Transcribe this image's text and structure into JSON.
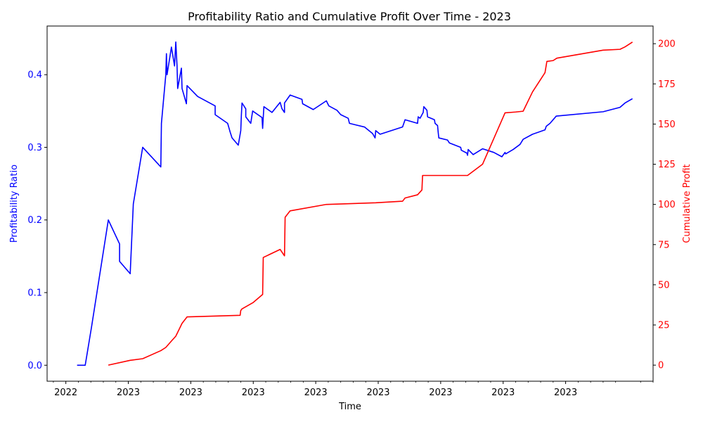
{
  "chart_data": {
    "type": "line",
    "title": "Profitability Ratio and Cumulative Profit Over Time - 2023",
    "xlabel": "Time",
    "x_tick_labels": [
      "2022",
      "2023",
      "2023",
      "2023",
      "2023",
      "2023",
      "2023",
      "2023",
      "2023"
    ],
    "axes": {
      "left": {
        "label": "Profitability Ratio",
        "color": "#0000ff",
        "ylim": [
          -0.022,
          0.467
        ],
        "ticks": [
          0.0,
          0.1,
          0.2,
          0.3,
          0.4
        ],
        "tick_labels": [
          "0.0",
          "0.1",
          "0.2",
          "0.3",
          "0.4"
        ]
      },
      "right": {
        "label": "Cumulative Profit",
        "color": "#ff0000",
        "ylim": [
          -10,
          211
        ],
        "ticks": [
          0,
          25,
          50,
          75,
          100,
          125,
          150,
          175,
          200
        ],
        "tick_labels": [
          "0",
          "25",
          "50",
          "75",
          "100",
          "125",
          "150",
          "175",
          "200"
        ]
      }
    },
    "xlim": [
      -0.3,
      9.4
    ],
    "x_ticks": [
      0,
      1,
      2,
      3,
      4,
      5,
      6,
      7,
      8
    ],
    "grid": false,
    "series": [
      {
        "name": "Profitability Ratio",
        "axis": "left",
        "color": "#0000ff",
        "points": [
          [
            0.18,
            0.0
          ],
          [
            0.31,
            0.0
          ],
          [
            0.41,
            0.052
          ],
          [
            0.68,
            0.2
          ],
          [
            0.86,
            0.167
          ],
          [
            0.86,
            0.143
          ],
          [
            1.03,
            0.126
          ],
          [
            1.08,
            0.222
          ],
          [
            1.23,
            0.3
          ],
          [
            1.52,
            0.273
          ],
          [
            1.53,
            0.333
          ],
          [
            1.6,
            0.4
          ],
          [
            1.61,
            0.429
          ],
          [
            1.62,
            0.4
          ],
          [
            1.69,
            0.438
          ],
          [
            1.74,
            0.412
          ],
          [
            1.76,
            0.445
          ],
          [
            1.78,
            0.412
          ],
          [
            1.79,
            0.381
          ],
          [
            1.85,
            0.409
          ],
          [
            1.86,
            0.381
          ],
          [
            1.93,
            0.36
          ],
          [
            1.94,
            0.385
          ],
          [
            2.11,
            0.37
          ],
          [
            2.39,
            0.357
          ],
          [
            2.39,
            0.345
          ],
          [
            2.59,
            0.333
          ],
          [
            2.63,
            0.321
          ],
          [
            2.66,
            0.313
          ],
          [
            2.76,
            0.303
          ],
          [
            2.8,
            0.323
          ],
          [
            2.81,
            0.345
          ],
          [
            2.82,
            0.361
          ],
          [
            2.88,
            0.353
          ],
          [
            2.88,
            0.342
          ],
          [
            2.96,
            0.333
          ],
          [
            2.99,
            0.35
          ],
          [
            3.14,
            0.341
          ],
          [
            3.15,
            0.326
          ],
          [
            3.17,
            0.356
          ],
          [
            3.3,
            0.348
          ],
          [
            3.43,
            0.362
          ],
          [
            3.46,
            0.353
          ],
          [
            3.5,
            0.348
          ],
          [
            3.5,
            0.361
          ],
          [
            3.59,
            0.372
          ],
          [
            3.78,
            0.366
          ],
          [
            3.79,
            0.36
          ],
          [
            3.96,
            0.352
          ],
          [
            4.17,
            0.364
          ],
          [
            4.21,
            0.357
          ],
          [
            4.34,
            0.351
          ],
          [
            4.4,
            0.345
          ],
          [
            4.52,
            0.34
          ],
          [
            4.54,
            0.333
          ],
          [
            4.78,
            0.328
          ],
          [
            4.91,
            0.319
          ],
          [
            4.95,
            0.313
          ],
          [
            4.96,
            0.323
          ],
          [
            5.03,
            0.318
          ],
          [
            5.39,
            0.328
          ],
          [
            5.43,
            0.338
          ],
          [
            5.63,
            0.333
          ],
          [
            5.64,
            0.342
          ],
          [
            5.67,
            0.34
          ],
          [
            5.72,
            0.348
          ],
          [
            5.73,
            0.356
          ],
          [
            5.78,
            0.351
          ],
          [
            5.79,
            0.342
          ],
          [
            5.9,
            0.338
          ],
          [
            5.91,
            0.333
          ],
          [
            5.95,
            0.33
          ],
          [
            5.96,
            0.321
          ],
          [
            5.97,
            0.313
          ],
          [
            6.11,
            0.31
          ],
          [
            6.14,
            0.306
          ],
          [
            6.32,
            0.3
          ],
          [
            6.33,
            0.296
          ],
          [
            6.42,
            0.292
          ],
          [
            6.43,
            0.289
          ],
          [
            6.44,
            0.297
          ],
          [
            6.52,
            0.29
          ],
          [
            6.67,
            0.298
          ],
          [
            6.85,
            0.293
          ],
          [
            6.98,
            0.287
          ],
          [
            7.03,
            0.293
          ],
          [
            7.04,
            0.291
          ],
          [
            7.16,
            0.297
          ],
          [
            7.27,
            0.304
          ],
          [
            7.32,
            0.311
          ],
          [
            7.47,
            0.318
          ],
          [
            7.67,
            0.324
          ],
          [
            7.69,
            0.329
          ],
          [
            7.75,
            0.333
          ],
          [
            7.85,
            0.343
          ],
          [
            8.6,
            0.349
          ],
          [
            8.87,
            0.355
          ],
          [
            8.95,
            0.361
          ],
          [
            9.07,
            0.367
          ]
        ]
      },
      {
        "name": "Cumulative Profit",
        "axis": "right",
        "color": "#ff0000",
        "points": [
          [
            0.68,
            0.0
          ],
          [
            1.03,
            3.0
          ],
          [
            1.23,
            4.0
          ],
          [
            1.52,
            9.0
          ],
          [
            1.6,
            11.0
          ],
          [
            1.69,
            15.0
          ],
          [
            1.76,
            18.0
          ],
          [
            1.86,
            26.0
          ],
          [
            1.94,
            30.0
          ],
          [
            2.79,
            31.0
          ],
          [
            2.8,
            34.0
          ],
          [
            2.82,
            35.0
          ],
          [
            3.0,
            39.0
          ],
          [
            3.15,
            44.0
          ],
          [
            3.16,
            67.0
          ],
          [
            3.43,
            72.0
          ],
          [
            3.5,
            68.0
          ],
          [
            3.51,
            92.0
          ],
          [
            3.59,
            96.0
          ],
          [
            4.17,
            100.0
          ],
          [
            4.96,
            101.0
          ],
          [
            5.39,
            102.0
          ],
          [
            5.43,
            104.0
          ],
          [
            5.63,
            106.0
          ],
          [
            5.7,
            109.0
          ],
          [
            5.71,
            118.0
          ],
          [
            6.43,
            118.0
          ],
          [
            6.67,
            125.0
          ],
          [
            7.03,
            157.0
          ],
          [
            7.2,
            157.5
          ],
          [
            7.32,
            158.0
          ],
          [
            7.47,
            170.0
          ],
          [
            7.67,
            182.0
          ],
          [
            7.7,
            189.0
          ],
          [
            7.8,
            189.5
          ],
          [
            7.86,
            191.0
          ],
          [
            8.6,
            196.0
          ],
          [
            8.87,
            196.5
          ],
          [
            8.95,
            198.0
          ],
          [
            9.07,
            201.0
          ]
        ]
      }
    ]
  }
}
